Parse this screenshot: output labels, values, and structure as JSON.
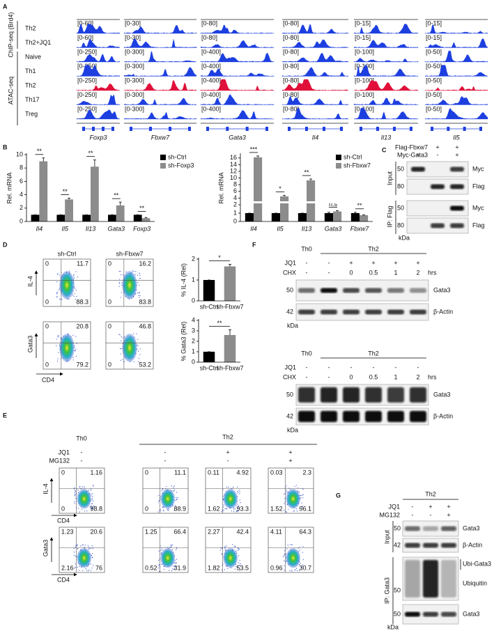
{
  "panel_labels": [
    "A",
    "B",
    "C",
    "D",
    "E",
    "F",
    "G"
  ],
  "A": {
    "groups": [
      "ChIP-seq (Brd4)",
      "ATAC-seq"
    ],
    "tracks": [
      "Th2",
      "Th2+JQ1",
      "Naive",
      "Th1",
      "Th2",
      "Th17",
      "Treg"
    ],
    "loci": [
      {
        "gene": "Foxp3",
        "ranges": [
          "[0-60]",
          "[0-60]",
          "[0-250]",
          "[0-250]",
          "[0-250]",
          "[0-250]",
          "[0-250]"
        ]
      },
      {
        "gene": "Fbxw7",
        "ranges": [
          "[0-30]",
          "[0-30]",
          "[0-300]",
          "[0-300]",
          "[0-300]",
          "[0-300]",
          "[0-300]"
        ]
      },
      {
        "gene": "Gata3",
        "ranges": [
          "[0-80]",
          "[0-80]",
          "[0-400]",
          "[0-400]",
          "[0-400]",
          "[0-400]",
          "[0-400]"
        ]
      },
      {
        "gene": "Il4",
        "ranges": [
          "[0-80]",
          "[0-80]",
          "[0-80]",
          "[0-80]",
          "[0-80]",
          "[0-80]",
          "[0-80]"
        ]
      },
      {
        "gene": "Il13",
        "ranges": [
          "[0-15]",
          "[0-15]",
          "[0-100]",
          "[0-100]",
          "[0-100]",
          "[0-100]",
          "[0-100]"
        ]
      },
      {
        "gene": "Il5",
        "ranges": [
          "[0-15]",
          "[0-15]",
          "[0-50]",
          "[0-50]",
          "[0-50]",
          "[0-50]",
          "[0-50]"
        ]
      }
    ]
  },
  "chart_data": [
    {
      "type": "bar",
      "y_label": "Rel. mRNA",
      "categories": [
        "Il4",
        "Il5",
        "Il13",
        "Gata3",
        "Foxp3"
      ],
      "series": [
        {
          "name": "sh-Ctrl",
          "color": "#000000",
          "values": [
            1,
            1,
            1,
            1,
            1
          ],
          "errors": [
            0,
            0,
            0,
            0,
            0
          ]
        },
        {
          "name": "sh-Foxp3",
          "color": "#8c8c8c",
          "values": [
            9,
            3.3,
            8.2,
            2.4,
            0.5
          ],
          "errors": [
            0.5,
            0.2,
            1,
            0.5,
            0.1
          ]
        }
      ],
      "significance": [
        "**",
        "**",
        "**",
        "**",
        "**"
      ],
      "ylim": [
        0,
        10
      ],
      "yticks": [
        0,
        2,
        4,
        6,
        8,
        10
      ]
    },
    {
      "type": "bar",
      "y_label": "Rel. mRNA",
      "categories": [
        "Il4",
        "Il5",
        "Il13",
        "Gata3",
        "Fbxw7"
      ],
      "series": [
        {
          "name": "sh-Ctrl",
          "color": "#000000",
          "values": [
            1,
            1,
            1,
            1,
            1
          ],
          "errors": [
            0,
            0,
            0,
            0.1,
            0.1
          ]
        },
        {
          "name": "sh-Fbxw7",
          "color": "#8c8c8c",
          "values": [
            16.2,
            4.5,
            9.3,
            1.2,
            0.75
          ],
          "errors": [
            0.4,
            0.3,
            0.4,
            0.1,
            0.05
          ]
        }
      ],
      "significance": [
        "***",
        "*",
        "**",
        "n.s",
        "**"
      ],
      "ylim": [
        0,
        17
      ],
      "axis_break": 2,
      "yticks": [
        0,
        1,
        2,
        4,
        6,
        8,
        10,
        12,
        14,
        16
      ]
    },
    {
      "type": "bar",
      "y_label": "% IL-4 (Rel)",
      "categories": [
        "sh-Ctrl",
        "sh-Fbxw7"
      ],
      "values": [
        1,
        1.65
      ],
      "errors": [
        0,
        0.1
      ],
      "colors": [
        "#000000",
        "#8c8c8c"
      ],
      "significance": "*",
      "ylim": [
        0,
        2
      ],
      "yticks": [
        0,
        1,
        2
      ]
    },
    {
      "type": "bar",
      "y_label": "% Gata3 (Rel)",
      "categories": [
        "sh-Ctrl",
        "sh-Fbxw7"
      ],
      "values": [
        1,
        2.6
      ],
      "errors": [
        0,
        0.5
      ],
      "colors": [
        "#000000",
        "#8c8c8c"
      ],
      "significance": "**",
      "ylim": [
        0,
        4
      ],
      "yticks": [
        0,
        1,
        2,
        3,
        4
      ]
    }
  ],
  "C": {
    "rows": [
      {
        "label": "Flag-Fbxw7",
        "lanes": [
          "-",
          "+",
          "+"
        ]
      },
      {
        "label": "Myc-Gata3",
        "lanes": [
          "+",
          "-",
          "+"
        ]
      }
    ],
    "sections": [
      "Input",
      "IP: Flag"
    ],
    "blots": [
      "Myc",
      "Flag",
      "Myc",
      "Flag"
    ],
    "markers": [
      50,
      80,
      50,
      80
    ],
    "unit": "kDa"
  },
  "D": {
    "columns": [
      "sh-Ctrl",
      "sh-Fbxw7"
    ],
    "y_labels": [
      "IL-4",
      "Gata3"
    ],
    "x_label": "CD4",
    "quadrants": [
      [
        [
          0,
          11.7,
          0,
          88.3
        ],
        [
          0,
          16.2,
          0,
          83.8
        ]
      ],
      [
        [
          0,
          20.8,
          0,
          79.2
        ],
        [
          0,
          46.8,
          0,
          53.2
        ]
      ]
    ]
  },
  "E": {
    "groups": [
      "Th0",
      "Th2"
    ],
    "rows": [
      {
        "label": "JQ1",
        "lanes": [
          "-",
          "-",
          "+",
          "+"
        ]
      },
      {
        "label": "MG132",
        "lanes": [
          "-",
          "-",
          "-",
          "+"
        ]
      }
    ],
    "y_labels": [
      "IL-4",
      "Gata3"
    ],
    "x_label": "CD4",
    "quadrants": [
      [
        [
          0,
          1.16,
          0,
          98.8
        ],
        [
          0,
          11.1,
          0,
          88.9
        ],
        [
          0.11,
          4.92,
          1.62,
          93.3
        ],
        [
          0.03,
          2.3,
          1.52,
          96.1
        ]
      ],
      [
        [
          1.23,
          20.6,
          2.16,
          76
        ],
        [
          1.25,
          66.4,
          0.52,
          31.9
        ],
        [
          2.27,
          42.4,
          1.82,
          53.5
        ],
        [
          4.11,
          64.3,
          0.96,
          30.7
        ]
      ]
    ]
  },
  "F": {
    "blocks": [
      {
        "groups": [
          "Th0",
          "Th2"
        ],
        "rows": [
          {
            "label": "JQ1",
            "lanes": [
              "-",
              "-",
              "+",
              "+",
              "+",
              "+"
            ]
          },
          {
            "label": "CHX",
            "lanes": [
              "-",
              "-",
              "0",
              "0.5",
              "1",
              "2"
            ],
            "unit": "hrs"
          }
        ],
        "blots": [
          "Gata3",
          "β-Actin"
        ],
        "markers": [
          50,
          42
        ],
        "unit": "kDa"
      },
      {
        "groups": [
          "Th0",
          "Th2"
        ],
        "rows": [
          {
            "label": "JQ1",
            "lanes": [
              "-",
              "-",
              "-",
              "-",
              "-",
              "-"
            ]
          },
          {
            "label": "CHX",
            "lanes": [
              "-",
              "-",
              "0",
              "0.5",
              "1",
              "2"
            ],
            "unit": "hrs"
          }
        ],
        "blots": [
          "Gata3",
          "β-Actin"
        ],
        "markers": [
          50,
          42
        ],
        "unit": "kDa"
      }
    ]
  },
  "G": {
    "groups": [
      "Th2"
    ],
    "rows": [
      {
        "label": "JQ1",
        "lanes": [
          "-",
          "+",
          "+"
        ]
      },
      {
        "label": "MG132",
        "lanes": [
          "-",
          "-",
          "+"
        ]
      }
    ],
    "sections": [
      "Input",
      "IP: Gata3"
    ],
    "blots": [
      "Gata3",
      "β-Actin",
      "Ubi-Gata3",
      "Ubiquitin",
      "Gata3"
    ],
    "markers": [
      50,
      42,
      50,
      50
    ],
    "unit": "kDa"
  }
}
